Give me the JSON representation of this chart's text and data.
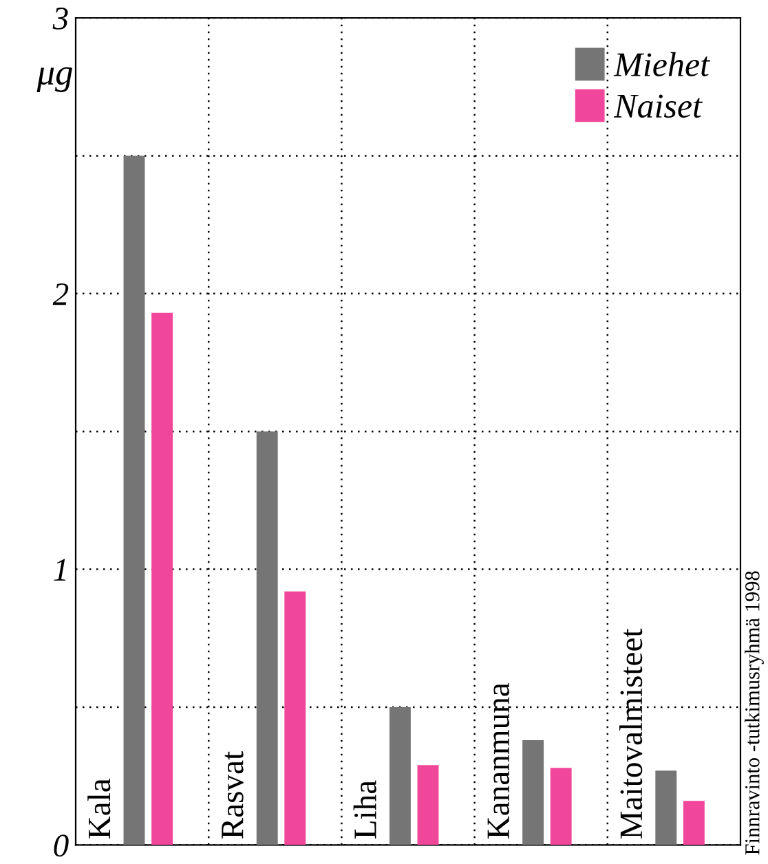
{
  "chart_data": {
    "type": "bar",
    "ylabel": "μg",
    "categories": [
      "Kala",
      "Rasvat",
      "Liha",
      "Kananmuna",
      "Maitovalmisteet"
    ],
    "series": [
      {
        "name": "Miehet",
        "color": "#757575",
        "values": [
          2.5,
          1.5,
          0.5,
          0.38,
          0.27
        ]
      },
      {
        "name": "Naiset",
        "color": "#f0479b",
        "values": [
          1.93,
          0.92,
          0.29,
          0.28,
          0.16
        ]
      }
    ],
    "ylim": [
      0,
      3
    ],
    "yticks": [
      0,
      {
        "value": 0.5,
        "label": null
      },
      1,
      {
        "value": 1.5,
        "label": null
      },
      2,
      {
        "value": 2.5,
        "label": null
      },
      3
    ],
    "grid": true,
    "legend": "top right",
    "annotations": [
      "Finnravinto -tutkimusryhmä 1998"
    ]
  }
}
